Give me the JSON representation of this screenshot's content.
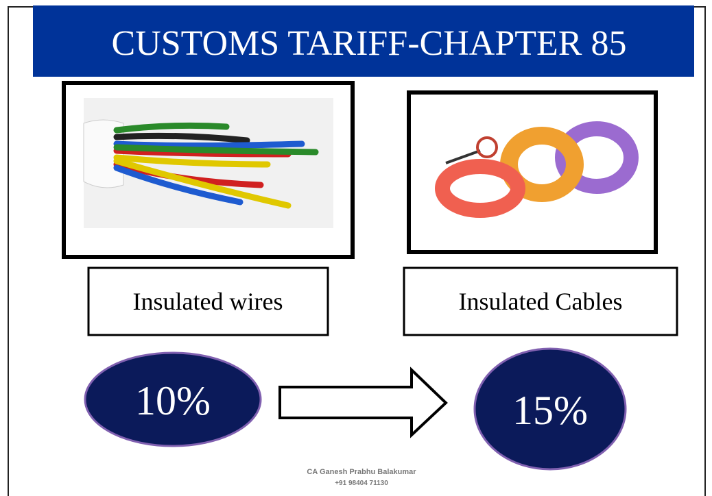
{
  "header": {
    "title": "CUSTOMS TARIFF-CHAPTER 85"
  },
  "items": [
    {
      "label": "Insulated wires",
      "rate": "10%"
    },
    {
      "label": "Insulated Cables",
      "rate": "15%"
    }
  ],
  "footer": {
    "name": "CA Ganesh Prabhu Balakumar",
    "phone": "+91 98404 71130"
  }
}
